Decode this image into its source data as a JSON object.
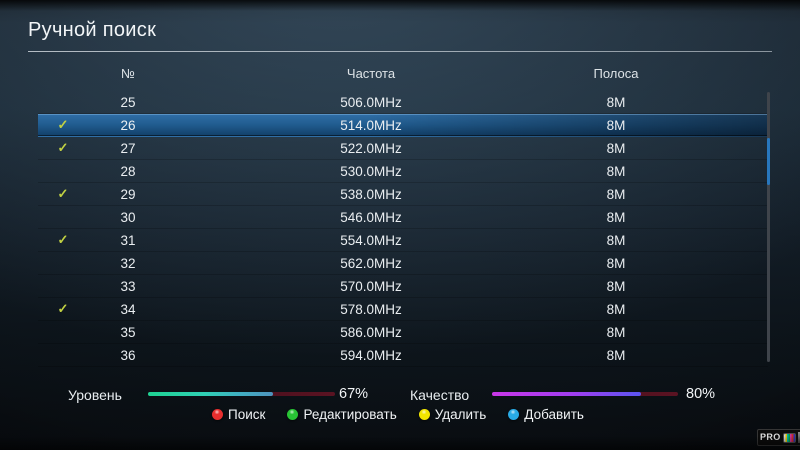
{
  "title": "Ручной поиск",
  "table": {
    "headers": {
      "num": "№",
      "freq": "Частота",
      "band": "Полоса"
    },
    "checkmark_glyph": "✓",
    "rows": [
      {
        "num": "25",
        "freq": "506.0MHz",
        "band": "8M",
        "checked": false,
        "selected": false
      },
      {
        "num": "26",
        "freq": "514.0MHz",
        "band": "8M",
        "checked": true,
        "selected": true
      },
      {
        "num": "27",
        "freq": "522.0MHz",
        "band": "8M",
        "checked": true,
        "selected": false
      },
      {
        "num": "28",
        "freq": "530.0MHz",
        "band": "8M",
        "checked": false,
        "selected": false
      },
      {
        "num": "29",
        "freq": "538.0MHz",
        "band": "8M",
        "checked": true,
        "selected": false
      },
      {
        "num": "30",
        "freq": "546.0MHz",
        "band": "8M",
        "checked": false,
        "selected": false
      },
      {
        "num": "31",
        "freq": "554.0MHz",
        "band": "8M",
        "checked": true,
        "selected": false
      },
      {
        "num": "32",
        "freq": "562.0MHz",
        "band": "8M",
        "checked": false,
        "selected": false
      },
      {
        "num": "33",
        "freq": "570.0MHz",
        "band": "8M",
        "checked": false,
        "selected": false
      },
      {
        "num": "34",
        "freq": "578.0MHz",
        "band": "8M",
        "checked": true,
        "selected": false
      },
      {
        "num": "35",
        "freq": "586.0MHz",
        "band": "8M",
        "checked": false,
        "selected": false
      },
      {
        "num": "36",
        "freq": "594.0MHz",
        "band": "8M",
        "checked": false,
        "selected": false
      }
    ]
  },
  "meters": {
    "level": {
      "label": "Уровень",
      "value": 67,
      "value_text": "67%"
    },
    "quality": {
      "label": "Качество",
      "value": 80,
      "value_text": "80%"
    }
  },
  "legend": [
    {
      "key": "search",
      "label": "Поиск",
      "color": "#e62e2e"
    },
    {
      "key": "edit",
      "label": "Редактировать",
      "color": "#28c435"
    },
    {
      "key": "delete",
      "label": "Удалить",
      "color": "#f2e600"
    },
    {
      "key": "add",
      "label": "Добавить",
      "color": "#29abe6"
    }
  ],
  "logo": {
    "text": "PRO"
  },
  "colors": {
    "selected_row_top": "#306fa7",
    "selected_row_bottom": "#123f68",
    "checkmark": "#c2d243",
    "level_bar_start": "#1ed293",
    "level_bar_end": "#4f93bd",
    "quality_bar_start": "#c937e8",
    "quality_bar_end": "#5a55f0",
    "meter_track": "#4a0f1c",
    "scroll_thumb": "#2877bd"
  }
}
